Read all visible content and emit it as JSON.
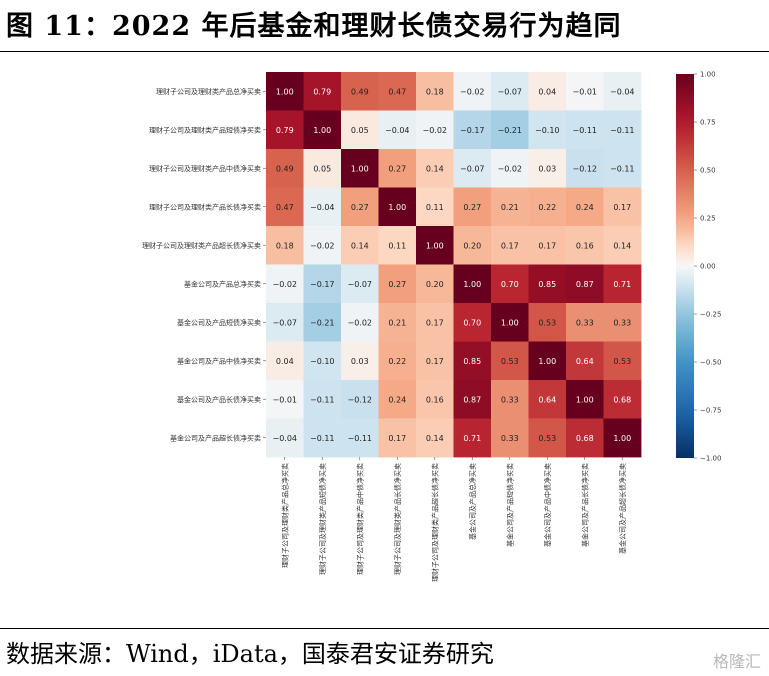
{
  "header": {
    "title": "图 11：2022 年后基金和理财长债交易行为趋同"
  },
  "footer": {
    "source": "数据来源：Wind，iData，国泰君安证券研究",
    "watermark": "格隆汇"
  },
  "chart_data": {
    "type": "heatmap",
    "title": "",
    "xlabel": "",
    "ylabel": "",
    "labels": [
      "理财子公司及理财类产品总净买卖",
      "理财子公司及理财类产品短债净买卖",
      "理财子公司及理财类产品中债净买卖",
      "理财子公司及理财类产品长债净买卖",
      "理财子公司及理财类产品超长债净买卖",
      "基金公司及产品总净买卖",
      "基金公司及产品短债净买卖",
      "基金公司及产品中债净买卖",
      "基金公司及产品长债净买卖",
      "基金公司及产品超长债净买卖"
    ],
    "matrix": [
      [
        1.0,
        0.79,
        0.49,
        0.47,
        0.18,
        -0.02,
        -0.07,
        0.04,
        -0.01,
        -0.04
      ],
      [
        0.79,
        1.0,
        0.05,
        -0.04,
        -0.02,
        -0.17,
        -0.21,
        -0.1,
        -0.11,
        -0.11
      ],
      [
        0.49,
        0.05,
        1.0,
        0.27,
        0.14,
        -0.07,
        -0.02,
        0.03,
        -0.12,
        -0.11
      ],
      [
        0.47,
        -0.04,
        0.27,
        1.0,
        0.11,
        0.27,
        0.21,
        0.22,
        0.24,
        0.17
      ],
      [
        0.18,
        -0.02,
        0.14,
        0.11,
        1.0,
        0.2,
        0.17,
        0.17,
        0.16,
        0.14
      ],
      [
        -0.02,
        -0.17,
        -0.07,
        0.27,
        0.2,
        1.0,
        0.7,
        0.85,
        0.87,
        0.71
      ],
      [
        -0.07,
        -0.21,
        -0.02,
        0.21,
        0.17,
        0.7,
        1.0,
        0.53,
        0.33,
        0.33
      ],
      [
        0.04,
        -0.1,
        0.03,
        0.22,
        0.17,
        0.85,
        0.53,
        1.0,
        0.64,
        0.53
      ],
      [
        -0.01,
        -0.11,
        -0.12,
        0.24,
        0.16,
        0.87,
        0.33,
        0.64,
        1.0,
        0.68
      ],
      [
        -0.04,
        -0.11,
        -0.11,
        0.17,
        0.14,
        0.71,
        0.33,
        0.53,
        0.68,
        1.0
      ]
    ],
    "colorbar": {
      "range": [
        -1.0,
        1.0
      ],
      "ticks": [
        "1.00",
        "0.75",
        "0.50",
        "0.25",
        "0.00",
        "-0.25",
        "-0.50",
        "-0.75",
        "-1.00"
      ]
    },
    "colors": {
      "high": "#67001f",
      "mid": "#f7f7f7",
      "low": "#053061"
    }
  }
}
